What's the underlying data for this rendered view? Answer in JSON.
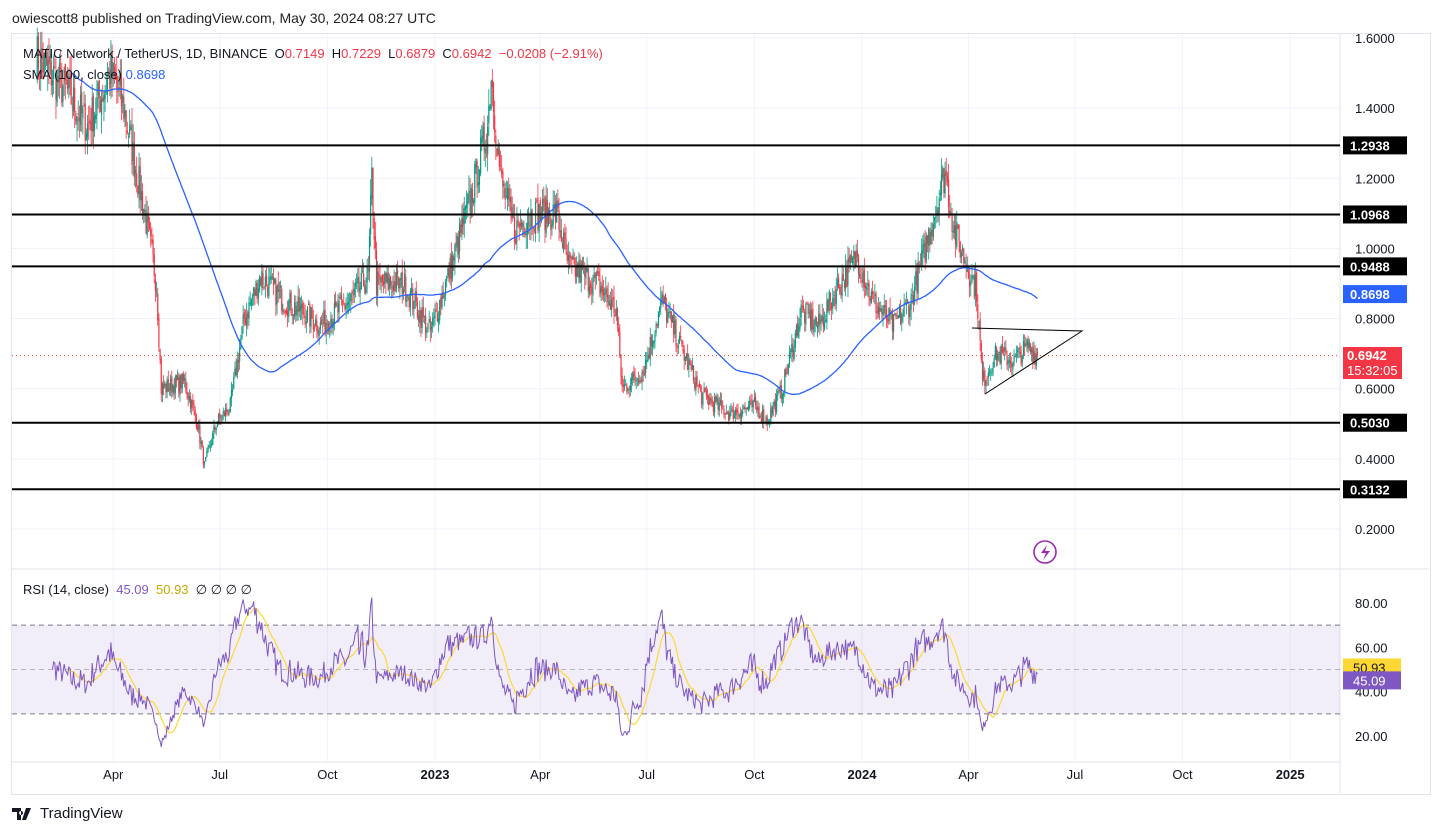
{
  "header": {
    "published": "owiescott8 published on TradingView.com, May 30, 2024 08:27 UTC"
  },
  "legend": {
    "symbol": "MATIC Network / TetherUS, 1D, BINANCE",
    "o_label": "O",
    "o": "0.7149",
    "h_label": "H",
    "h": "0.7229",
    "l_label": "L",
    "l": "0.6879",
    "c_label": "C",
    "c": "0.6942",
    "change": "−0.0208 (−2.91%)",
    "sma_label": "SMA (100, close)",
    "sma_value": "0.8698",
    "rsi_label": "RSI (14, close)",
    "rsi_value": "45.09",
    "rsi_ma_value": "50.93",
    "rsi_extra": "∅ ∅ ∅ ∅"
  },
  "price_tag": {
    "value": "0.6942",
    "countdown": "15:32:05"
  },
  "brand": "TradingView",
  "colors": {
    "up": "#089981",
    "down": "#f23645",
    "sma": "#2962ff",
    "rsi": "#7e57c2",
    "rsi_ma": "#fdd835"
  },
  "chart_data": [
    {
      "type": "candlestick",
      "title": "MATIC Network / TetherUS, 1D, BINANCE",
      "ylim": [
        0.13,
        1.66
      ],
      "y_ticks": [
        "1.6000",
        "1.4000",
        "1.2000",
        "1.0000",
        "0.8000",
        "0.6000",
        "0.4000",
        "0.2000"
      ],
      "x_ticks": [
        {
          "label": "Apr",
          "date": "2022-04-01"
        },
        {
          "label": "Jul",
          "date": "2022-07-01"
        },
        {
          "label": "Oct",
          "date": "2022-10-01"
        },
        {
          "label": "2023",
          "date": "2023-01-01"
        },
        {
          "label": "Apr",
          "date": "2023-04-01"
        },
        {
          "label": "Jul",
          "date": "2023-07-01"
        },
        {
          "label": "Oct",
          "date": "2023-10-01"
        },
        {
          "label": "2024",
          "date": "2024-01-01"
        },
        {
          "label": "Apr",
          "date": "2024-04-01"
        },
        {
          "label": "Jul",
          "date": "2024-07-01"
        },
        {
          "label": "Oct",
          "date": "2024-10-01"
        },
        {
          "label": "2025",
          "date": "2025-01-01"
        }
      ],
      "horizontal_levels": [
        "1.2938",
        "1.0968",
        "0.9488",
        "0.5030",
        "0.3132"
      ],
      "sma_label": "0.8698",
      "price_path": [
        [
          "2022-01-25",
          1.55
        ],
        [
          "2022-02-20",
          1.45
        ],
        [
          "2022-03-10",
          1.35
        ],
        [
          "2022-03-30",
          1.5
        ],
        [
          "2022-04-10",
          1.4
        ],
        [
          "2022-04-28",
          1.1
        ],
        [
          "2022-05-08",
          0.9
        ],
        [
          "2022-05-12",
          0.6
        ],
        [
          "2022-06-01",
          0.62
        ],
        [
          "2022-06-12",
          0.5
        ],
        [
          "2022-06-18",
          0.38
        ],
        [
          "2022-06-28",
          0.5
        ],
        [
          "2022-07-10",
          0.55
        ],
        [
          "2022-07-22",
          0.8
        ],
        [
          "2022-08-05",
          0.92
        ],
        [
          "2022-08-25",
          0.85
        ],
        [
          "2022-09-10",
          0.82
        ],
        [
          "2022-09-25",
          0.78
        ],
        [
          "2022-10-20",
          0.85
        ],
        [
          "2022-11-05",
          0.92
        ],
        [
          "2022-11-08",
          1.2
        ],
        [
          "2022-11-12",
          0.9
        ],
        [
          "2022-12-05",
          0.9
        ],
        [
          "2022-12-28",
          0.76
        ],
        [
          "2023-01-15",
          0.95
        ],
        [
          "2023-02-01",
          1.15
        ],
        [
          "2023-02-15",
          1.35
        ],
        [
          "2023-02-18",
          1.5
        ],
        [
          "2023-02-26",
          1.2
        ],
        [
          "2023-03-10",
          1.05
        ],
        [
          "2023-03-25",
          1.1
        ],
        [
          "2023-04-15",
          1.1
        ],
        [
          "2023-04-25",
          0.95
        ],
        [
          "2023-05-20",
          0.9
        ],
        [
          "2023-06-05",
          0.82
        ],
        [
          "2023-06-10",
          0.6
        ],
        [
          "2023-06-28",
          0.65
        ],
        [
          "2023-07-14",
          0.85
        ],
        [
          "2023-07-30",
          0.72
        ],
        [
          "2023-08-17",
          0.58
        ],
        [
          "2023-09-10",
          0.53
        ],
        [
          "2023-10-01",
          0.55
        ],
        [
          "2023-10-12",
          0.51
        ],
        [
          "2023-10-25",
          0.6
        ],
        [
          "2023-11-10",
          0.82
        ],
        [
          "2023-11-25",
          0.78
        ],
        [
          "2023-12-10",
          0.88
        ],
        [
          "2023-12-28",
          0.98
        ],
        [
          "2024-01-10",
          0.85
        ],
        [
          "2024-01-28",
          0.78
        ],
        [
          "2024-02-12",
          0.85
        ],
        [
          "2024-02-28",
          1.05
        ],
        [
          "2024-03-12",
          1.22
        ],
        [
          "2024-03-20",
          1.05
        ],
        [
          "2024-03-31",
          0.95
        ],
        [
          "2024-04-08",
          0.88
        ],
        [
          "2024-04-13",
          0.62
        ],
        [
          "2024-04-25",
          0.7
        ],
        [
          "2024-05-10",
          0.68
        ],
        [
          "2024-05-22",
          0.72
        ],
        [
          "2024-05-30",
          0.6942
        ]
      ]
    },
    {
      "type": "line",
      "title": "RSI (14, close)",
      "ylim": [
        10,
        90
      ],
      "y_ticks": [
        "80.00",
        "60.00",
        "40.00",
        "20.00"
      ],
      "bands": [
        70,
        50,
        30
      ],
      "series": [
        {
          "name": "RSI",
          "value": "45.09"
        },
        {
          "name": "RSI-based MA",
          "value": "50.93"
        }
      ]
    }
  ]
}
